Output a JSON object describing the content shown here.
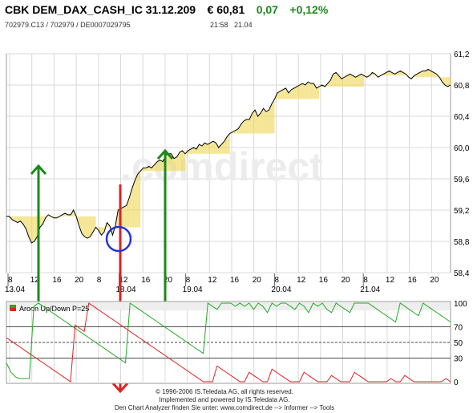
{
  "header": {
    "title": "CBK DEM_DAX_CASH_IC 31.12.209",
    "price": "€ 60,81",
    "change_abs": "0,07",
    "change_pct": "+0,12%",
    "ids": "702979.C13  /  702979  /  DE0007029795",
    "time": "21:58",
    "date": "21.04"
  },
  "watermark": ".comdirect",
  "chart_data": [
    {
      "type": "line",
      "title": "",
      "ylim": [
        58.4,
        61.2
      ],
      "y_ticks": [
        "61,2",
        "60,8",
        "60,4",
        "60,0",
        "59,6",
        "59,2",
        "58,8",
        "58,4"
      ],
      "y_tick_values": [
        61.2,
        60.8,
        60.4,
        60.0,
        59.6,
        59.2,
        58.8,
        58.4
      ],
      "x_tick_labels": [
        "8",
        "12",
        "16",
        "20",
        "8",
        "12",
        "16",
        "20",
        "8",
        "12",
        "16",
        "20",
        "8",
        "12",
        "16",
        "20",
        "8",
        "12",
        "16",
        "20"
      ],
      "x_day_labels": [
        "13.04",
        "18.04",
        "19.04",
        "20.04",
        "21.04"
      ],
      "x": [
        0,
        1,
        2,
        3,
        4,
        5,
        6,
        7,
        8,
        9,
        10,
        11,
        12,
        13,
        14,
        15,
        16,
        17,
        18,
        19,
        20,
        21,
        22,
        23,
        24,
        25,
        26,
        27,
        28,
        29,
        30,
        31,
        32,
        33,
        34,
        35,
        36,
        37,
        38,
        39,
        40,
        41,
        42,
        43,
        44,
        45,
        46,
        47,
        48,
        49,
        50,
        51,
        52,
        53,
        54,
        55,
        56,
        57,
        58,
        59,
        60,
        61,
        62,
        63,
        64,
        65,
        66,
        67,
        68,
        69,
        70,
        71,
        72,
        73,
        74,
        75,
        76,
        77,
        78,
        79,
        80,
        81,
        82,
        83,
        84,
        85,
        86,
        87,
        88,
        89,
        90,
        91,
        92,
        93,
        94,
        95,
        96,
        97,
        98,
        99,
        100,
        101,
        102,
        103,
        104,
        105,
        106,
        107,
        108,
        109,
        110,
        111,
        112,
        113,
        114,
        115,
        116,
        117,
        118,
        119,
        120,
        121,
        122,
        123,
        124,
        125,
        126,
        127,
        128,
        129,
        130,
        131,
        132,
        133,
        134,
        135,
        136,
        137,
        138,
        139,
        140,
        141,
        142,
        143,
        144,
        145,
        146,
        147,
        148,
        149,
        150,
        151,
        152,
        153,
        154,
        155,
        156,
        157,
        158,
        159
      ],
      "series": [
        {
          "values": [
            59.12,
            59.12,
            59.08,
            59.06,
            59.04,
            59.06,
            59.02,
            58.96,
            58.86,
            58.78,
            58.8,
            58.86,
            58.98,
            59.02,
            59.1,
            59.14,
            59.12,
            59.1,
            59.1,
            59.12,
            59.14,
            59.16,
            59.14,
            59.14,
            59.2,
            59.12,
            59.0,
            58.9,
            58.86,
            58.84,
            58.86,
            58.92,
            58.98,
            58.94,
            58.88,
            58.92,
            59.04,
            59.0,
            58.88,
            59.0,
            59.2,
            59.22,
            59.24,
            59.26,
            59.36,
            59.48,
            59.58,
            59.66,
            59.7,
            59.74,
            59.74,
            59.76,
            59.74,
            59.78,
            59.82,
            59.84,
            59.82,
            59.9,
            59.92,
            59.92,
            59.86,
            59.88,
            59.94,
            59.96,
            59.92,
            59.96,
            59.98,
            60.0,
            59.98,
            60.04,
            60.02,
            60.06,
            60.04,
            60.06,
            60.08,
            60.06,
            60.0,
            60.04,
            60.08,
            60.14,
            60.18,
            60.2,
            60.22,
            60.24,
            60.3,
            60.34,
            60.36,
            60.36,
            60.44,
            60.48,
            60.4,
            60.44,
            60.5,
            60.46,
            60.48,
            60.56,
            60.62,
            60.7,
            60.72,
            60.74,
            60.76,
            60.7,
            60.74,
            60.76,
            60.78,
            60.8,
            60.82,
            60.8,
            60.84,
            60.82,
            60.82,
            60.76,
            60.78,
            60.8,
            60.78,
            60.82,
            60.86,
            60.94,
            60.96,
            60.92,
            60.88,
            60.9,
            60.92,
            60.94,
            60.92,
            60.9,
            60.92,
            60.94,
            60.92,
            60.9,
            60.92,
            60.96,
            60.94,
            60.9,
            60.92,
            60.94,
            60.96,
            60.98,
            60.96,
            60.94,
            60.96,
            60.98,
            60.96,
            60.94,
            60.9,
            60.88,
            60.92,
            60.94,
            60.96,
            60.98,
            60.98,
            61.0,
            60.98,
            60.96,
            60.94,
            60.9,
            60.84,
            60.8,
            60.78,
            60.8
          ]
        }
      ]
    },
    {
      "type": "line",
      "title": "Aroon Up/Down P=25",
      "ylim": [
        0,
        100
      ],
      "y_ticks": [
        "100",
        "70",
        "50",
        "30",
        "0"
      ],
      "y_tick_values": [
        100,
        70,
        50,
        30,
        0
      ],
      "series": [
        {
          "name": "Aroon Up",
          "color": "#22aa22",
          "values": [
            24,
            12,
            6,
            4,
            4,
            4,
            96,
            100,
            96,
            92,
            88,
            84,
            80,
            76,
            72,
            68,
            64,
            60,
            56,
            52,
            48,
            44,
            40,
            36,
            32,
            28,
            24,
            100,
            96,
            92,
            88,
            84,
            80,
            76,
            72,
            68,
            64,
            60,
            56,
            52,
            48,
            44,
            40,
            36,
            100,
            96,
            92,
            100,
            100,
            100,
            96,
            100,
            96,
            100,
            92,
            100,
            96,
            88,
            100,
            96,
            100,
            100,
            96,
            92,
            100,
            96,
            88,
            100,
            96,
            100,
            92,
            88,
            100,
            96,
            92,
            88,
            100,
            100,
            100,
            100,
            96,
            92,
            88,
            84,
            80,
            76,
            100,
            96,
            92,
            88,
            84,
            100,
            96,
            92,
            88,
            84,
            80,
            76
          ]
        },
        {
          "name": "Aroon Down",
          "color": "#dd2222",
          "values": [
            56,
            52,
            48,
            44,
            40,
            36,
            32,
            28,
            24,
            20,
            16,
            12,
            8,
            4,
            0,
            72,
            68,
            64,
            100,
            96,
            92,
            88,
            84,
            80,
            76,
            72,
            68,
            64,
            60,
            56,
            52,
            48,
            44,
            40,
            36,
            32,
            28,
            24,
            20,
            16,
            12,
            8,
            4,
            0,
            0,
            0,
            20,
            16,
            12,
            8,
            4,
            0,
            0,
            12,
            8,
            4,
            0,
            0,
            16,
            12,
            8,
            4,
            0,
            0,
            0,
            12,
            8,
            4,
            0,
            0,
            0,
            8,
            4,
            0,
            0,
            0,
            12,
            8,
            4,
            0,
            0,
            0,
            0,
            0,
            4,
            0,
            0,
            8,
            4,
            0,
            0,
            0,
            0,
            0,
            0,
            0,
            4,
            0
          ]
        }
      ]
    }
  ],
  "annotations": {
    "arrows": [
      "up",
      "down",
      "up"
    ],
    "circle": "low marker"
  },
  "footer": {
    "line1": "© 1996-2006 IS.Teledata AG, all rights reserved.",
    "line2": "Implemented and powered by IS.Teledata AG.",
    "line3": "Den Chart Analyzer finden Sie unter: www.comdirect.de --> Informer --> Tools"
  },
  "colors": {
    "fill": "#f0d860",
    "grid": "#d8d8d8",
    "up_arrow": "#1a8a1a",
    "down_arrow": "#dd2222",
    "circle": "#2233dd"
  }
}
